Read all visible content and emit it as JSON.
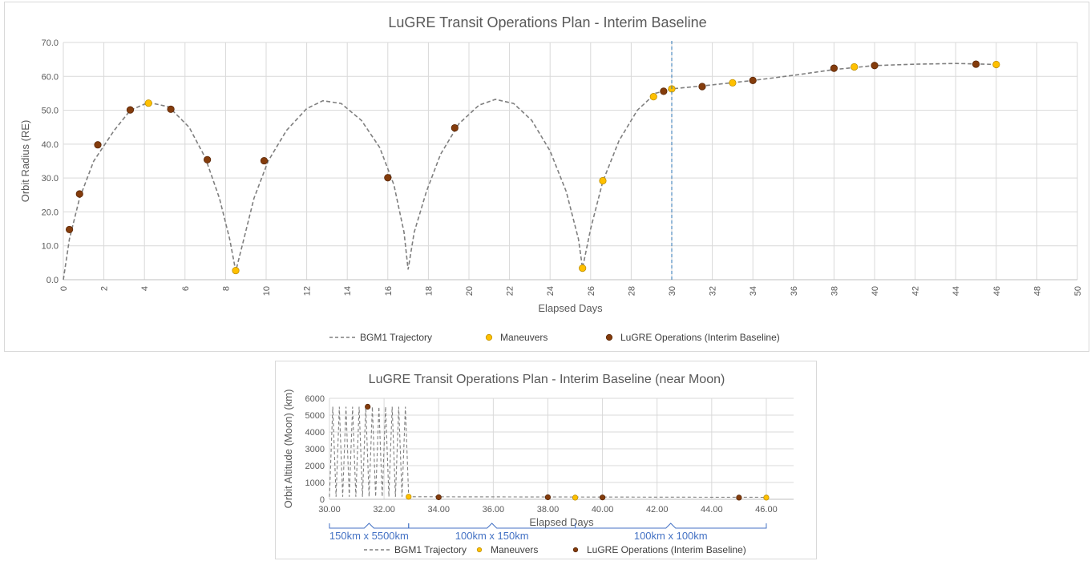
{
  "colors": {
    "trajectory": "#7f7f7f",
    "maneuvers": "#ffc000",
    "maneuvers_edge": "#bf9000",
    "operations": "#843c0c",
    "grid": "#d9d9d9",
    "marker_line": "#2e75b6",
    "bracket": "#4472c4"
  },
  "chart_data": [
    {
      "type": "scatter",
      "title": "LuGRE Transit Operations Plan - Interim Baseline",
      "xlabel": "Elapsed Days",
      "ylabel": "Orbit Radius (RE)",
      "xlim": [
        0,
        50
      ],
      "ylim": [
        0,
        70
      ],
      "xticks": [
        "0",
        "2",
        "4",
        "6",
        "8",
        "10",
        "12",
        "14",
        "16",
        "18",
        "20",
        "22",
        "24",
        "26",
        "28",
        "30",
        "32",
        "34",
        "36",
        "38",
        "40",
        "42",
        "44",
        "46",
        "48",
        "50"
      ],
      "yticks": [
        "0.0",
        "10.0",
        "20.0",
        "30.0",
        "40.0",
        "50.0",
        "60.0",
        "70.0"
      ],
      "grid": true,
      "legend": "bottom",
      "vertical_marker_x": 30,
      "series": [
        {
          "name": "BGM1 Trajectory",
          "kind": "dashed-line",
          "points": [
            [
              0,
              0
            ],
            [
              0.3,
              12
            ],
            [
              0.8,
              24
            ],
            [
              1.5,
              35
            ],
            [
              2.5,
              44
            ],
            [
              3.3,
              50
            ],
            [
              4.2,
              52.3
            ],
            [
              5.2,
              51
            ],
            [
              6.2,
              45
            ],
            [
              7.0,
              36
            ],
            [
              7.7,
              24
            ],
            [
              8.2,
              12
            ],
            [
              8.5,
              2.5
            ],
            [
              8.9,
              12
            ],
            [
              9.4,
              24
            ],
            [
              10.1,
              35
            ],
            [
              11,
              44
            ],
            [
              12,
              50.5
            ],
            [
              12.8,
              52.8
            ],
            [
              13.7,
              52
            ],
            [
              14.7,
              47
            ],
            [
              15.6,
              39
            ],
            [
              16.3,
              28
            ],
            [
              16.8,
              14
            ],
            [
              17.0,
              3
            ],
            [
              17.3,
              14
            ],
            [
              17.9,
              26
            ],
            [
              18.6,
              37
            ],
            [
              19.5,
              46
            ],
            [
              20.5,
              51.5
            ],
            [
              21.3,
              53.2
            ],
            [
              22.2,
              52
            ],
            [
              23.1,
              47
            ],
            [
              24,
              38
            ],
            [
              24.8,
              26
            ],
            [
              25.4,
              12
            ],
            [
              25.6,
              3.4
            ],
            [
              26.0,
              15
            ],
            [
              26.6,
              29
            ],
            [
              27.4,
              41
            ],
            [
              28.3,
              50
            ],
            [
              29.2,
              55
            ],
            [
              30,
              56.3
            ],
            [
              32,
              57.5
            ],
            [
              34,
              58.8
            ],
            [
              36,
              60.3
            ],
            [
              38,
              62
            ],
            [
              40,
              63.2
            ],
            [
              42,
              63.6
            ],
            [
              44,
              63.8
            ],
            [
              45.5,
              63.6
            ],
            [
              46,
              63.5
            ]
          ]
        },
        {
          "name": "Maneuvers",
          "kind": "points",
          "points": [
            [
              4.2,
              52.1
            ],
            [
              8.5,
              2.7
            ],
            [
              25.6,
              3.4
            ],
            [
              26.6,
              29.2
            ],
            [
              29.1,
              54
            ],
            [
              30,
              56.3
            ],
            [
              33,
              58.1
            ],
            [
              39,
              62.8
            ],
            [
              46,
              63.5
            ]
          ]
        },
        {
          "name": "LuGRE Operations (Interim Baseline)",
          "kind": "points",
          "points": [
            [
              0.3,
              14.8
            ],
            [
              0.8,
              25.3
            ],
            [
              1.7,
              39.8
            ],
            [
              3.3,
              50.1
            ],
            [
              5.3,
              50.3
            ],
            [
              7.1,
              35.4
            ],
            [
              9.9,
              35.1
            ],
            [
              16,
              30.1
            ],
            [
              19.3,
              44.8
            ],
            [
              29.6,
              55.6
            ],
            [
              31.5,
              57
            ],
            [
              34,
              58.8
            ],
            [
              38,
              62.4
            ],
            [
              40,
              63.2
            ],
            [
              45,
              63.6
            ]
          ]
        }
      ]
    },
    {
      "type": "scatter",
      "title": "LuGRE Transit Operations Plan - Interim Baseline (near Moon)",
      "xlabel": "Elapsed Days",
      "ylabel": "Orbit Altitude (Moon) (km)",
      "xlim": [
        30,
        47
      ],
      "ylim": [
        0,
        6000
      ],
      "xticks": [
        "30.00",
        "32.00",
        "34.00",
        "36.00",
        "38.00",
        "40.00",
        "42.00",
        "44.00",
        "46.00"
      ],
      "yticks": [
        "0",
        "1000",
        "2000",
        "3000",
        "4000",
        "5000",
        "6000"
      ],
      "grid": true,
      "legend": "bottom",
      "series": [
        {
          "name": "BGM1 Trajectory",
          "kind": "dashed-oscillation",
          "x_start": 30,
          "x_end": 32.9,
          "peaks": 12,
          "min": 150,
          "max": 5500,
          "tail_value": 120,
          "tail_end": 46
        },
        {
          "name": "Maneuvers",
          "kind": "points",
          "points": [
            [
              32.9,
              150
            ],
            [
              39,
              100
            ],
            [
              46,
              100
            ]
          ]
        },
        {
          "name": "LuGRE Operations (Interim Baseline)",
          "kind": "points",
          "points": [
            [
              31.4,
              5500
            ],
            [
              34,
              120
            ],
            [
              38,
              120
            ],
            [
              40,
              110
            ],
            [
              45,
              100
            ]
          ]
        }
      ],
      "annotations": [
        {
          "label": "150km x 5500km",
          "x_from": 30,
          "x_to": 32.9
        },
        {
          "label": "100km x 150km",
          "x_from": 32.9,
          "x_to": 39
        },
        {
          "label": "100km x 100km",
          "x_from": 39,
          "x_to": 46
        }
      ]
    }
  ]
}
